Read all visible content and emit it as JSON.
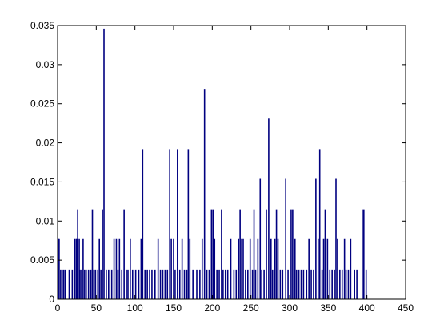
{
  "chart_data": {
    "type": "bar",
    "color": "#000080",
    "x": [
      1,
      2,
      4,
      6,
      8,
      10,
      15,
      19,
      22,
      24,
      25,
      26,
      28,
      29,
      31,
      33,
      35,
      37,
      40,
      43,
      45,
      47,
      49,
      52,
      54,
      56,
      58,
      60,
      63,
      66,
      70,
      73,
      76,
      78,
      80,
      83,
      86,
      89,
      91,
      94,
      97,
      101,
      105,
      108,
      110,
      113,
      116,
      119,
      122,
      126,
      130,
      133,
      136,
      139,
      142,
      145,
      147,
      150,
      152,
      155,
      158,
      161,
      164,
      167,
      169,
      171,
      175,
      180,
      184,
      187,
      190,
      193,
      196,
      199,
      201,
      203,
      206,
      209,
      212,
      214,
      217,
      220,
      224,
      228,
      231,
      234,
      236,
      238,
      240,
      243,
      246,
      249,
      252,
      254,
      256,
      259,
      262,
      264,
      267,
      270,
      273,
      276,
      278,
      281,
      283,
      285,
      288,
      291,
      295,
      298,
      302,
      304,
      307,
      309,
      312,
      315,
      318,
      322,
      325,
      328,
      331,
      334,
      337,
      339,
      342,
      344,
      346,
      349,
      352,
      355,
      358,
      360,
      362,
      365,
      368,
      371,
      373,
      376,
      379,
      384,
      387,
      394,
      396,
      399
    ],
    "values": [
      0.0077,
      0.0077,
      0.0038,
      0.0038,
      0.0038,
      0.0038,
      0.0038,
      0.0038,
      0.0077,
      0.0077,
      0.0077,
      0.0115,
      0.0077,
      0.0038,
      0.0038,
      0.0077,
      0.0038,
      0.0038,
      0.0038,
      0.0038,
      0.0115,
      0.0038,
      0.0038,
      0.0038,
      0.0077,
      0.0038,
      0.0115,
      0.0346,
      0.0038,
      0.0038,
      0.0038,
      0.0077,
      0.0077,
      0.0038,
      0.0077,
      0.0038,
      0.0115,
      0.0038,
      0.0038,
      0.0077,
      0.0038,
      0.0038,
      0.0038,
      0.0077,
      0.0192,
      0.0038,
      0.0038,
      0.0038,
      0.0038,
      0.0038,
      0.0077,
      0.0038,
      0.0038,
      0.0038,
      0.0038,
      0.0192,
      0.0077,
      0.0077,
      0.0038,
      0.0192,
      0.0038,
      0.0077,
      0.0038,
      0.0038,
      0.0192,
      0.0077,
      0.0038,
      0.0038,
      0.0038,
      0.0077,
      0.0269,
      0.0038,
      0.0038,
      0.0115,
      0.0115,
      0.0077,
      0.0038,
      0.0038,
      0.0115,
      0.0038,
      0.0038,
      0.0038,
      0.0077,
      0.0038,
      0.0038,
      0.0077,
      0.0115,
      0.0077,
      0.0077,
      0.0038,
      0.0038,
      0.0077,
      0.0038,
      0.0115,
      0.0038,
      0.0077,
      0.0154,
      0.0038,
      0.0038,
      0.0115,
      0.0231,
      0.0077,
      0.0038,
      0.0077,
      0.0115,
      0.0077,
      0.0038,
      0.0038,
      0.0154,
      0.0038,
      0.0115,
      0.0115,
      0.0077,
      0.0038,
      0.0038,
      0.0038,
      0.0038,
      0.0038,
      0.0077,
      0.0038,
      0.0038,
      0.0154,
      0.0077,
      0.0192,
      0.0038,
      0.0077,
      0.0115,
      0.0077,
      0.0038,
      0.0038,
      0.0038,
      0.0154,
      0.0077,
      0.0038,
      0.0038,
      0.0077,
      0.0038,
      0.0038,
      0.0077,
      0.0038,
      0.0038,
      0.0115,
      0.0115,
      0.0038
    ],
    "xlim": [
      0,
      450
    ],
    "xticks": [
      0,
      50,
      100,
      150,
      200,
      250,
      300,
      350,
      400,
      450
    ],
    "ylim": [
      0,
      0.035
    ],
    "yticks": [
      0,
      0.005,
      0.01,
      0.015,
      0.02,
      0.025,
      0.03,
      0.035
    ]
  }
}
